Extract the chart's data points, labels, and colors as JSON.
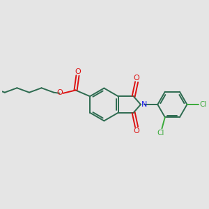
{
  "background_color": "#e5e5e5",
  "bond_color": "#2d6b50",
  "bond_lw": 1.4,
  "N_color": "#1a1aee",
  "O_color": "#dd1111",
  "Cl_color": "#3aaa3a",
  "figsize": [
    3.0,
    3.0
  ],
  "dpi": 100,
  "xlim": [
    0,
    10
  ],
  "ylim": [
    0,
    10
  ]
}
